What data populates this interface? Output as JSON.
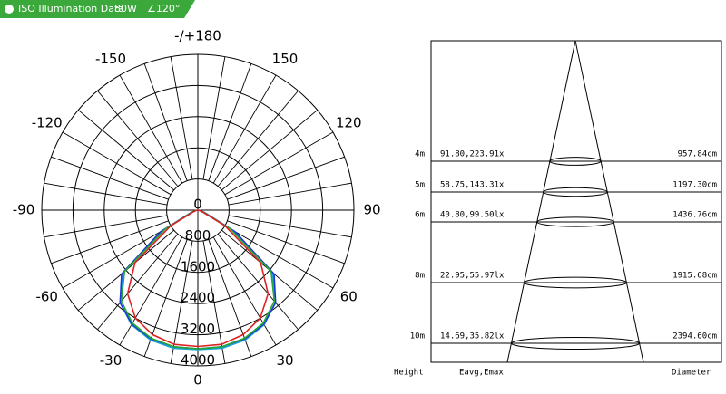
{
  "header": {
    "title": "ISO Illumination Data",
    "power": "80W",
    "beam": "∠120°"
  },
  "polar": {
    "angle_ticks": [
      {
        "value": 180,
        "label": "-/+180"
      },
      -150,
      150,
      -120,
      120,
      -90,
      90,
      -60,
      60,
      -30,
      30,
      0
    ],
    "radial_ticks": [
      0,
      800,
      1600,
      2400,
      3200,
      4000
    ],
    "rlim": [
      0,
      4000
    ],
    "angles": [
      -90,
      -80,
      -70,
      -60,
      -50,
      -40,
      -30,
      -20,
      -10,
      0,
      10,
      20,
      30,
      40,
      50,
      60,
      70,
      80,
      90
    ],
    "series": [
      {
        "color": "#1aa7d6",
        "values": [
          0,
          50,
          150,
          1000,
          2500,
          3100,
          3400,
          3550,
          3600,
          3580,
          3600,
          3550,
          3400,
          3100,
          2500,
          1000,
          150,
          50,
          0
        ]
      },
      {
        "color": "#2233dd",
        "values": [
          0,
          50,
          180,
          1100,
          2550,
          3100,
          3380,
          3520,
          3560,
          3560,
          3560,
          3520,
          3380,
          3100,
          2550,
          1100,
          180,
          50,
          0
        ]
      },
      {
        "color": "#22aa33",
        "values": [
          0,
          50,
          150,
          950,
          2450,
          3050,
          3350,
          3500,
          3560,
          3560,
          3560,
          3500,
          3350,
          3050,
          2450,
          950,
          150,
          50,
          0
        ]
      },
      {
        "color": "#dd2222",
        "values": [
          0,
          40,
          120,
          800,
          2100,
          2800,
          3200,
          3400,
          3500,
          3500,
          3500,
          3400,
          3200,
          2800,
          2100,
          800,
          120,
          40,
          0
        ]
      }
    ]
  },
  "cone": {
    "rows": [
      {
        "height": "4m",
        "illuminance": "91.80,223.91x",
        "diameter": "957.84cm"
      },
      {
        "height": "5m",
        "illuminance": "58.75,143.31x",
        "diameter": "1197.30cm"
      },
      {
        "height": "6m",
        "illuminance": "40.80,99.50lx",
        "diameter": "1436.76cm"
      },
      {
        "height": "8m",
        "illuminance": "22.95,55.97lx",
        "diameter": "1915.68cm"
      },
      {
        "height": "10m",
        "illuminance": "14.69,35.82lx",
        "diameter": "2394.60cm"
      }
    ],
    "footer": {
      "height": "Height",
      "illuminance": "Eavg,Emax",
      "diameter": "Diameter"
    }
  }
}
